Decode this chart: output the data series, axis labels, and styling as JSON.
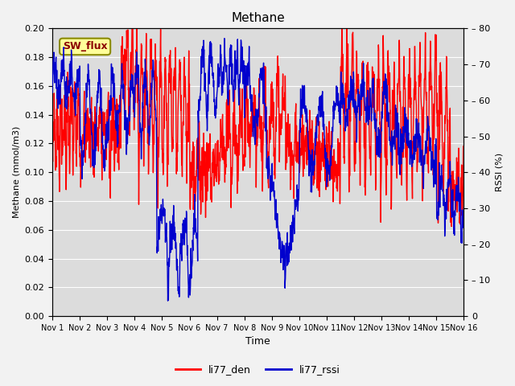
{
  "title": "Methane",
  "ylabel_left": "Methane (mmol/m3)",
  "ylabel_right": "RSSI (%)",
  "xlabel": "Time",
  "ylim_left": [
    0.0,
    0.2
  ],
  "ylim_right": [
    0,
    80
  ],
  "yticks_left": [
    0.0,
    0.02,
    0.04,
    0.06,
    0.08,
    0.1,
    0.12,
    0.14,
    0.16,
    0.18,
    0.2
  ],
  "yticks_right": [
    0,
    10,
    20,
    30,
    40,
    50,
    60,
    70,
    80
  ],
  "xtick_labels": [
    "Nov 1",
    "Nov 2",
    "Nov 3",
    "Nov 4",
    "Nov 5",
    "Nov 6",
    "Nov 7",
    "Nov 8",
    "Nov 9",
    "Nov 10",
    "Nov 11",
    "Nov 12",
    "Nov 13",
    "Nov 14",
    "Nov 15",
    "Nov 16"
  ],
  "color_red": "#FF0000",
  "color_blue": "#0000CD",
  "bg_color": "#DCDCDC",
  "fig_bg": "#F2F2F2",
  "legend_labels": [
    "li77_den",
    "li77_rssi"
  ],
  "sw_flux_label": "SW_flux",
  "sw_flux_fg": "#8B0000",
  "sw_flux_bg": "#FFFF99",
  "sw_flux_border": "#8B8B00",
  "n_points": 2000,
  "linewidth": 1.0
}
